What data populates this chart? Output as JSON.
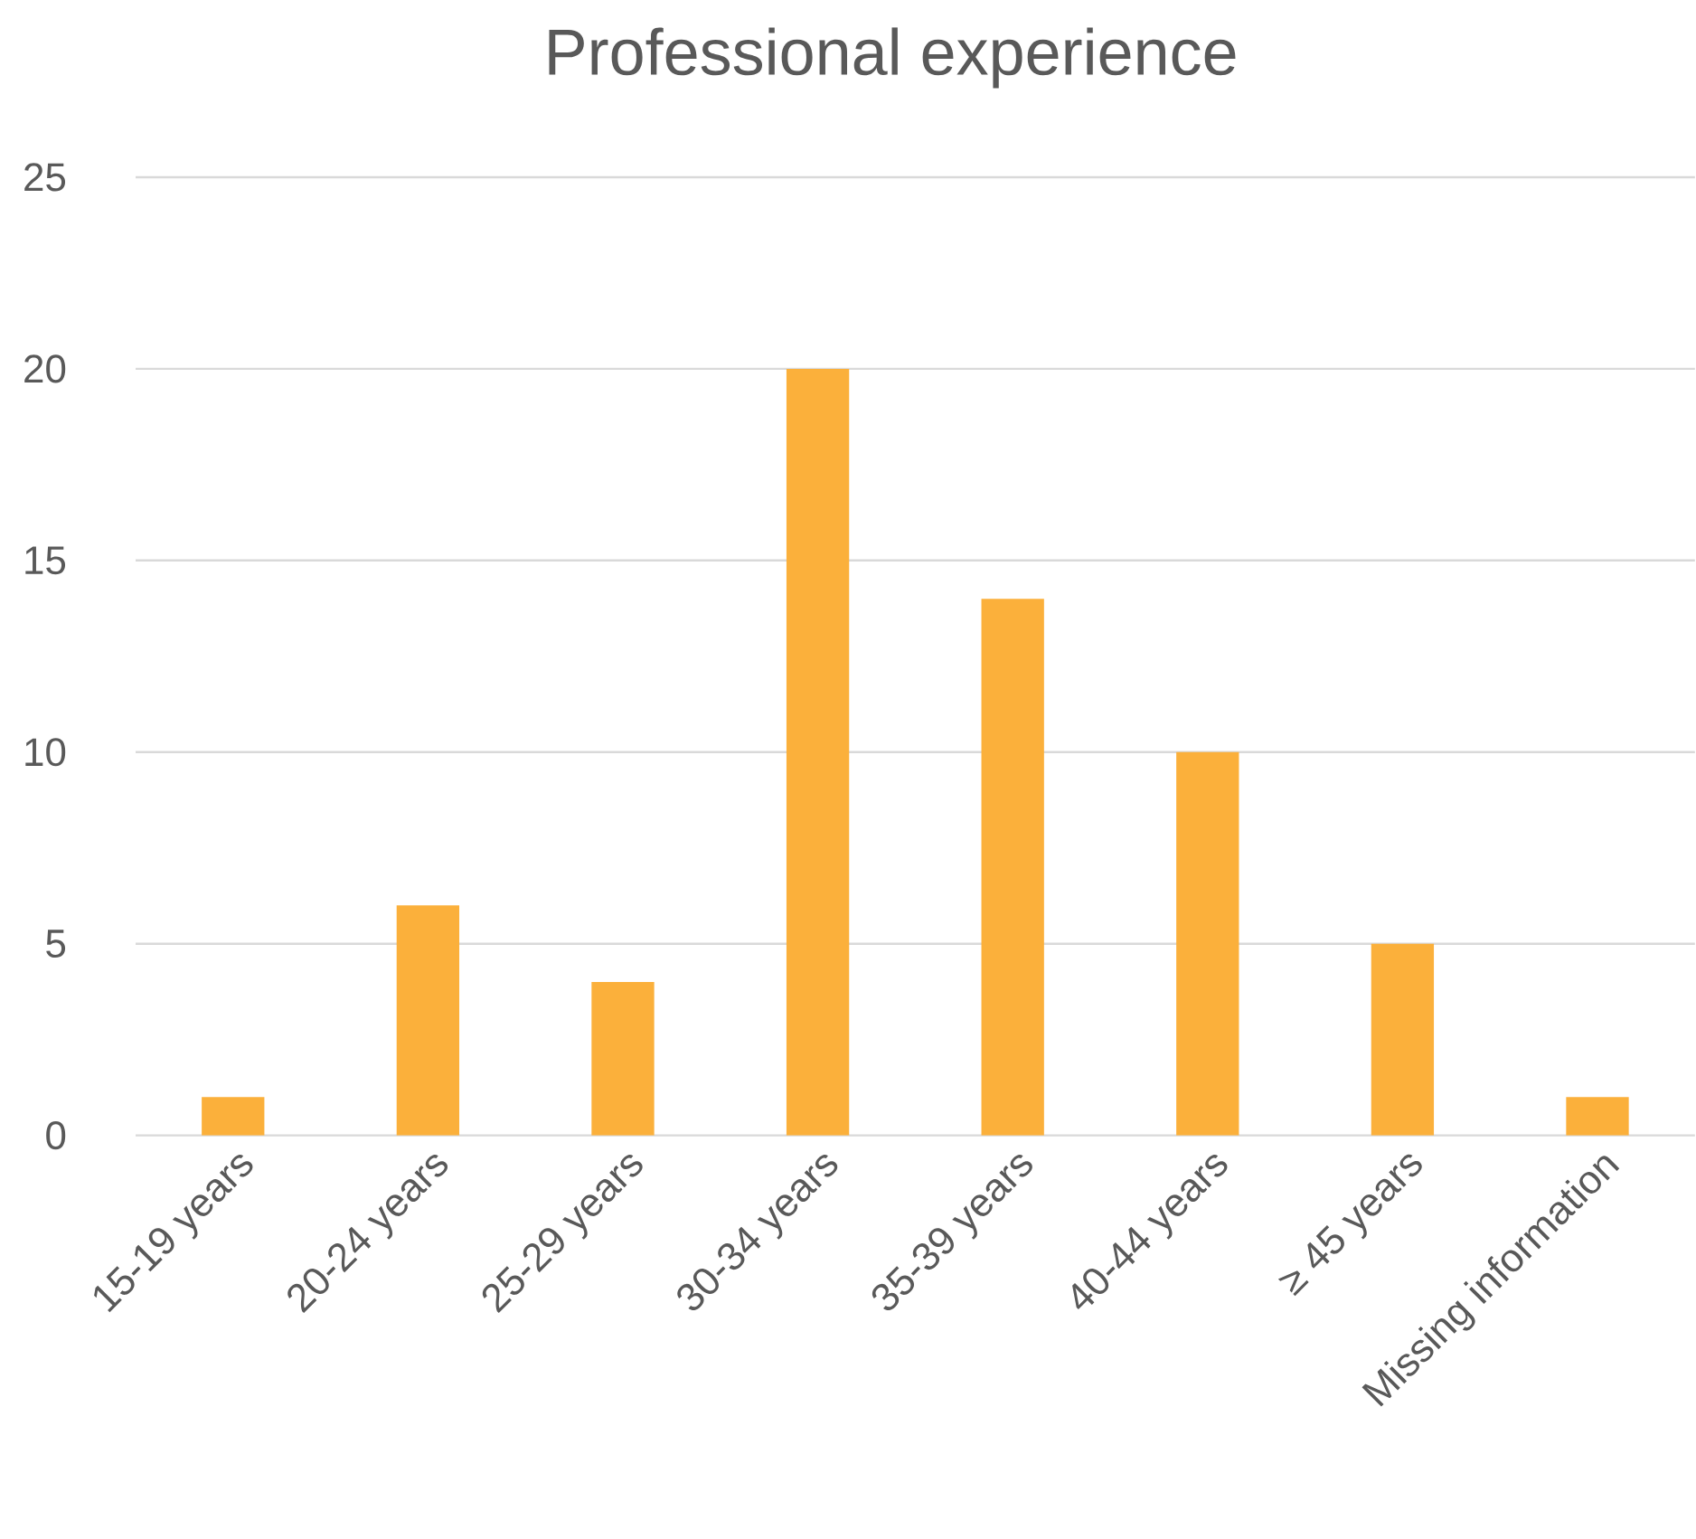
{
  "chart_data": {
    "type": "bar",
    "title": "Professional experience",
    "categories": [
      "15-19 years",
      "20-24 years",
      "25-29 years",
      "30-34 years",
      "35-39 years",
      "40-44 years",
      "≥ 45 years",
      "Missing information"
    ],
    "values": [
      1,
      6,
      4,
      20,
      14,
      10,
      5,
      1
    ],
    "color": "#fbb03b",
    "ylim": [
      0,
      25
    ],
    "yticks": [
      0,
      5,
      10,
      15,
      20,
      25
    ],
    "grid": "y"
  }
}
